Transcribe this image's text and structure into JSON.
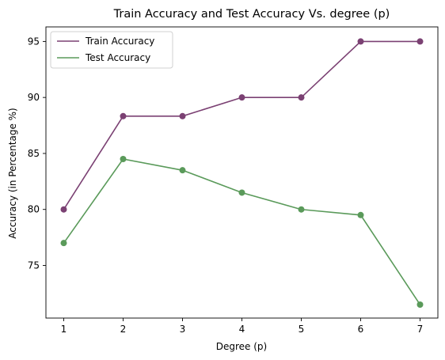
{
  "chart_data": {
    "type": "line",
    "title": "Train Accuracy and Test Accuracy Vs. degree (p)",
    "xlabel": "Degree (p)",
    "ylabel": "Accuracy (in Percentage %)",
    "x": [
      1,
      2,
      3,
      4,
      5,
      6,
      7
    ],
    "xlim": [
      0.7,
      7.3
    ],
    "ylim": [
      70.3,
      96.3
    ],
    "xticks": [
      1,
      2,
      3,
      4,
      5,
      6,
      7
    ],
    "yticks": [
      75,
      80,
      85,
      90,
      95
    ],
    "grid": false,
    "legend": "upper-left",
    "series": [
      {
        "name": "Train Accuracy",
        "color": "#7b4173",
        "values": [
          80.0,
          88.33,
          88.33,
          90.0,
          90.0,
          95.0,
          95.0
        ]
      },
      {
        "name": "Test Accuracy",
        "color": "#5a9a5a",
        "values": [
          77.0,
          84.5,
          83.5,
          81.5,
          80.0,
          79.5,
          71.5
        ]
      }
    ]
  }
}
